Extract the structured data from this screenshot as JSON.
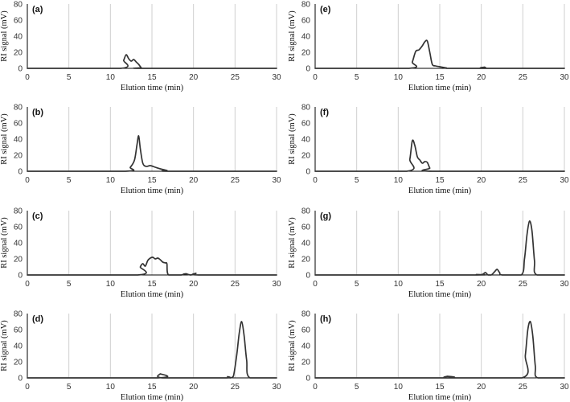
{
  "colors": {
    "trace": "#333333",
    "gridline": "#cfcfcf",
    "axis": "#000000",
    "background": "#ffffff"
  },
  "chart_data": [
    {
      "panel": "(a)",
      "type": "line",
      "xlabel": "Elution time (min)",
      "ylabel": "RI signal (mV)",
      "xlim": [
        0,
        30
      ],
      "ylim": [
        0,
        80
      ],
      "xticks": [
        0,
        5,
        10,
        15,
        20,
        25,
        30
      ],
      "yticks": [
        0,
        20,
        40,
        60,
        80
      ],
      "grid": "vertical",
      "x": [
        0,
        11.2,
        11.6,
        11.9,
        12.2,
        12.5,
        12.8,
        13.1,
        13.4,
        13.7,
        14.0,
        30
      ],
      "y": [
        0,
        0,
        10,
        17,
        12,
        9,
        11,
        8,
        5,
        1,
        0,
        0
      ]
    },
    {
      "panel": "(b)",
      "type": "line",
      "xlabel": "Elution time (min)",
      "ylabel": "RI signal (mV)",
      "xlim": [
        0,
        30
      ],
      "ylim": [
        0,
        80
      ],
      "xticks": [
        0,
        5,
        10,
        15,
        20,
        25,
        30
      ],
      "yticks": [
        0,
        20,
        40,
        60,
        80
      ],
      "grid": "vertical",
      "x": [
        0,
        11.8,
        12.4,
        12.9,
        13.2,
        13.4,
        13.6,
        13.9,
        14.3,
        14.8,
        15.4,
        16.0,
        16.8,
        17.2,
        30
      ],
      "y": [
        0,
        0,
        5,
        14,
        33,
        44,
        28,
        10,
        6,
        7,
        5,
        3,
        1,
        0,
        0
      ]
    },
    {
      "panel": "(c)",
      "type": "line",
      "xlabel": "Elution time (min)",
      "ylabel": "RI signal (mV)",
      "xlim": [
        0,
        30
      ],
      "ylim": [
        0,
        80
      ],
      "xticks": [
        0,
        5,
        10,
        15,
        20,
        25,
        30
      ],
      "yticks": [
        0,
        20,
        40,
        60,
        80
      ],
      "grid": "vertical",
      "x": [
        0,
        13.3,
        13.6,
        13.9,
        14.2,
        14.5,
        14.8,
        15.1,
        15.4,
        15.7,
        16.0,
        16.3,
        16.6,
        16.8,
        17.0,
        18.5,
        18.8,
        19.1,
        19.4,
        19.7,
        20.0,
        20.3,
        20.6,
        30
      ],
      "y": [
        0,
        0,
        10,
        14,
        11,
        18,
        21,
        22,
        20,
        21,
        19,
        16,
        15,
        14,
        0,
        0,
        1,
        1.5,
        0.5,
        0,
        1,
        2,
        0,
        0
      ]
    },
    {
      "panel": "(d)",
      "type": "line",
      "xlabel": "Elution time (min)",
      "ylabel": "RI signal (mV)",
      "xlim": [
        0,
        30
      ],
      "ylim": [
        0,
        80
      ],
      "xticks": [
        0,
        5,
        10,
        15,
        20,
        25,
        30
      ],
      "yticks": [
        0,
        20,
        40,
        60,
        80
      ],
      "grid": "vertical",
      "x": [
        0,
        15.7,
        16.0,
        16.3,
        23.8,
        24.1,
        24.4,
        24.8,
        25.2,
        25.5,
        25.8,
        26.1,
        26.4,
        26.8,
        30
      ],
      "y": [
        0,
        0,
        5,
        0,
        0,
        1.5,
        0,
        2,
        28,
        55,
        70,
        52,
        22,
        0,
        0
      ]
    },
    {
      "panel": "(e)",
      "type": "line",
      "xlabel": "Elution time (min)",
      "ylabel": "RI signal (mV)",
      "xlim": [
        0,
        30
      ],
      "ylim": [
        0,
        80
      ],
      "xticks": [
        0,
        5,
        10,
        15,
        20,
        25,
        30
      ],
      "yticks": [
        0,
        20,
        40,
        60,
        80
      ],
      "grid": "vertical",
      "x": [
        0,
        11.3,
        11.7,
        12.1,
        12.5,
        12.9,
        13.2,
        13.5,
        13.8,
        14.1,
        14.5,
        15.0,
        15.5,
        15.8,
        16.1,
        20.2,
        20.4,
        20.6,
        30
      ],
      "y": [
        0,
        0,
        8,
        21,
        23,
        28,
        33,
        34,
        20,
        5,
        3,
        2,
        1,
        0.5,
        0,
        0,
        1.5,
        0,
        0
      ]
    },
    {
      "panel": "(f)",
      "type": "line",
      "xlabel": "Elution time (min)",
      "ylabel": "RI signal (mV)",
      "xlim": [
        0,
        30
      ],
      "ylim": [
        0,
        80
      ],
      "xticks": [
        0,
        5,
        10,
        15,
        20,
        25,
        30
      ],
      "yticks": [
        0,
        20,
        40,
        60,
        80
      ],
      "grid": "vertical",
      "x": [
        0,
        11.0,
        11.4,
        11.7,
        12.0,
        12.3,
        12.6,
        12.9,
        13.2,
        13.5,
        13.8,
        14.1,
        30
      ],
      "y": [
        0,
        0,
        15,
        38,
        32,
        18,
        14,
        10,
        12,
        11,
        4,
        0,
        0
      ]
    },
    {
      "panel": "(g)",
      "type": "line",
      "xlabel": "Elution time (min)",
      "ylabel": "RI signal (mV)",
      "xlim": [
        0,
        30
      ],
      "ylim": [
        0,
        80
      ],
      "xticks": [
        0,
        5,
        10,
        15,
        20,
        25,
        30
      ],
      "yticks": [
        0,
        20,
        40,
        60,
        80
      ],
      "grid": "vertical",
      "x": [
        0,
        19.0,
        19.4,
        19.8,
        20.2,
        20.5,
        20.8,
        21.2,
        21.6,
        21.9,
        22.2,
        22.5,
        24.8,
        25.2,
        25.5,
        25.8,
        26.1,
        26.4,
        26.7,
        30
      ],
      "y": [
        0,
        0,
        0.5,
        0,
        1,
        3,
        0,
        0,
        4,
        7,
        3,
        0,
        0,
        20,
        50,
        67,
        55,
        18,
        0,
        0
      ]
    },
    {
      "panel": "(h)",
      "type": "line",
      "xlabel": "Elution time (min)",
      "ylabel": "RI signal (mV)",
      "xlim": [
        0,
        30
      ],
      "ylim": [
        0,
        80
      ],
      "xticks": [
        0,
        5,
        10,
        15,
        20,
        25,
        30
      ],
      "yticks": [
        0,
        20,
        40,
        60,
        80
      ],
      "grid": "vertical",
      "x": [
        0,
        15.6,
        15.9,
        16.2,
        24.9,
        25.3,
        25.6,
        25.9,
        26.2,
        26.5,
        26.8,
        30
      ],
      "y": [
        0,
        0,
        2,
        0,
        0,
        28,
        60,
        70,
        52,
        15,
        0,
        0
      ]
    }
  ]
}
